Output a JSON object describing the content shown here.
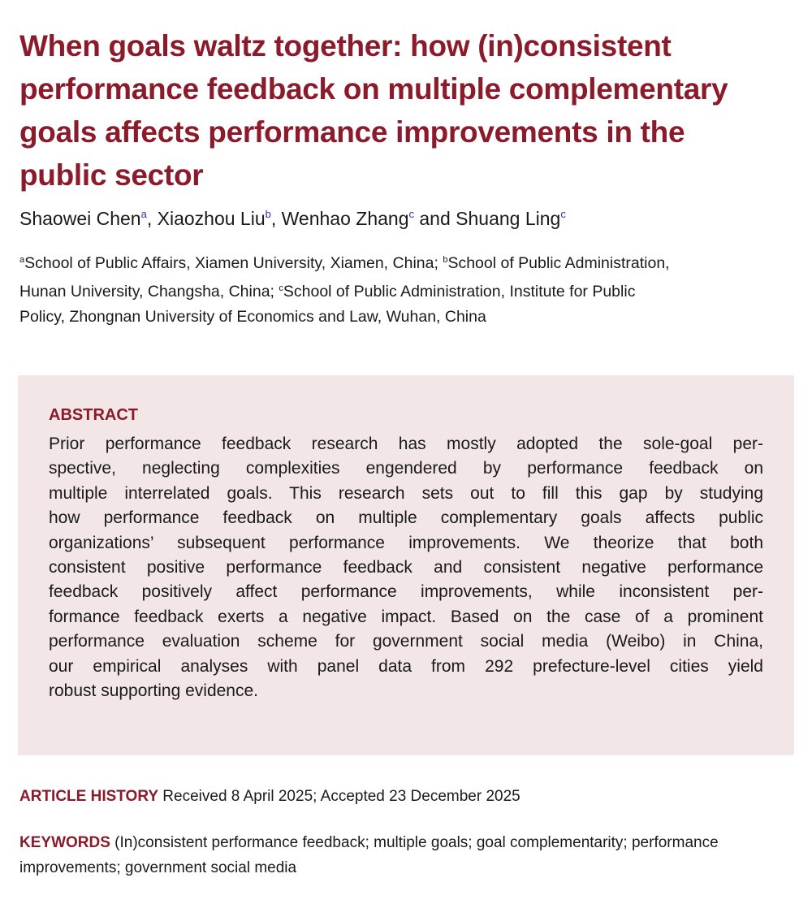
{
  "title_lines": [
    "When goals waltz together: how (in)consistent",
    "performance feedback on multiple complementary",
    "goals affects performance improvements in the",
    "public sector"
  ],
  "authors": [
    {
      "name": "Shaowei Chen",
      "sup": "a",
      "sep": ", "
    },
    {
      "name": "Xiaozhou Liu",
      "sup": "b",
      "sep": ", "
    },
    {
      "name": "Wenhao Zhang",
      "sup": "c",
      "sep": " and "
    },
    {
      "name": "Shuang Ling",
      "sup": "c",
      "sep": ""
    }
  ],
  "affiliations": {
    "line1_sup_a": "a",
    "line1_a": "School of Public Affairs, Xiamen University, Xiamen, China; ",
    "line1_sup_b": "b",
    "line1_b": "School of Public Administration,",
    "line2_a": "Hunan University, Changsha, China; ",
    "line2_sup_c": "c",
    "line2_b": "School of Public Administration, Institute for Public",
    "line3": "Policy, Zhongnan University of Economics and Law, Wuhan, China"
  },
  "abstract": {
    "heading": "ABSTRACT",
    "lines": [
      "Prior performance feedback research has mostly adopted the sole-goal per-",
      "spective, neglecting complexities engendered by performance feedback on",
      "multiple interrelated goals. This research sets out to fill this gap by studying",
      "how performance feedback on multiple complementary goals affects public",
      "organizations’ subsequent performance improvements. We theorize that both",
      "consistent positive performance feedback and consistent negative performance",
      "feedback positively affect performance improvements, while inconsistent per-",
      "formance feedback exerts a negative impact. Based on the case of a prominent",
      "performance evaluation scheme for government social media (Weibo) in China,",
      "our empirical analyses with panel data from 292 prefecture-level cities yield",
      "robust supporting evidence."
    ]
  },
  "history": {
    "label": "ARTICLE HISTORY",
    "text": " Received 8 April 2025; Accepted 23 December 2025"
  },
  "keywords": {
    "label": "KEYWORDS",
    "text": " (In)consistent performance feedback; multiple goals; goal complementarity; performance improvements; government social media"
  },
  "colors": {
    "accent": "#8b1a2b",
    "abstract_bg": "#f2e6e7",
    "superscript": "#3333aa"
  }
}
